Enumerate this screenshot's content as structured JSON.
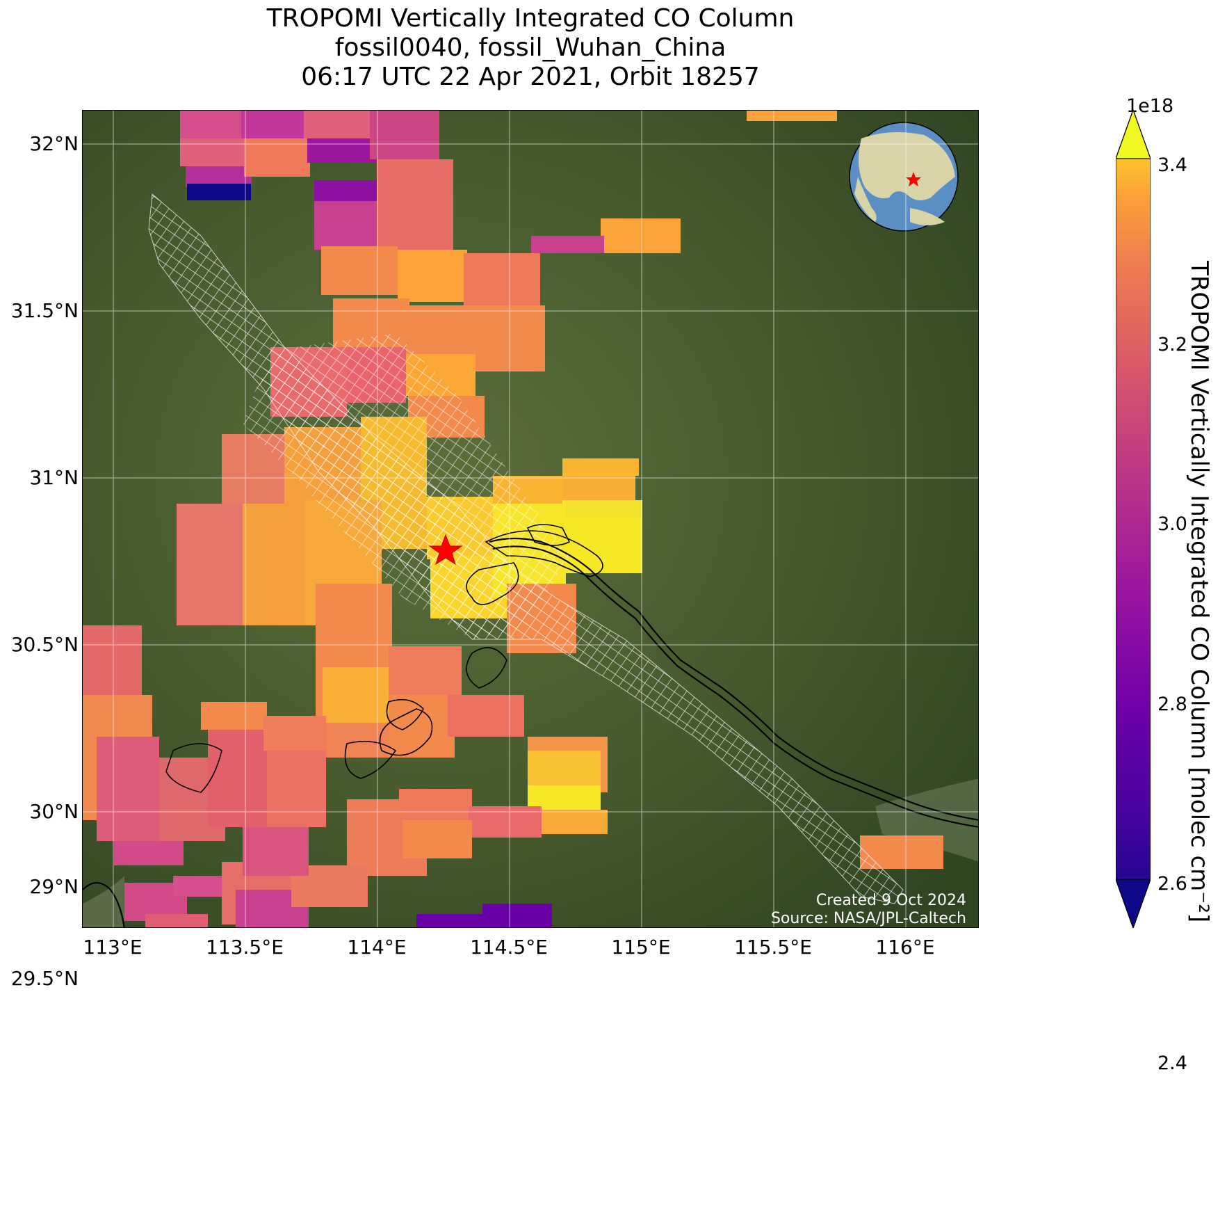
{
  "title": {
    "line1": "TROPOMI Vertically Integrated CO Column",
    "line2": "fossil0040, fossil_Wuhan_China",
    "line3": "06:17 UTC 22 Apr 2021, Orbit 18257"
  },
  "map": {
    "lat_labels": [
      "32°N",
      "31.5°N",
      "31°N",
      "30.5°N",
      "30°N",
      "29.5°N",
      "29°N"
    ],
    "lon_labels": [
      "113°E",
      "113.5°E",
      "114°E",
      "114.5°E",
      "115°E",
      "115.5°E",
      "116°E"
    ],
    "marker": {
      "name": "star",
      "color": "#ff0000",
      "lon": 114.33,
      "lat": 30.64
    },
    "background_color": "#3f5a2c",
    "river_color": "#000000",
    "hatch_color": "#ffffff",
    "inset_globe": {
      "ocean_color": "#5b8fc4",
      "land_color": "#d8d4a8",
      "marker_color": "#ff0000"
    }
  },
  "credits": {
    "created": "Created 9 Oct 2024",
    "source": "Source: NASA/JPL-Caltech"
  },
  "colorbar": {
    "unit_multiplier": "1e18",
    "label": "TROPOMI Vertically Integrated CO Column [molec cm⁻²]",
    "ticks": [
      "3.4",
      "3.2",
      "3.0",
      "2.8",
      "2.6",
      "2.4"
    ],
    "colormap": "plasma",
    "range": [
      2.3,
      3.42
    ]
  }
}
